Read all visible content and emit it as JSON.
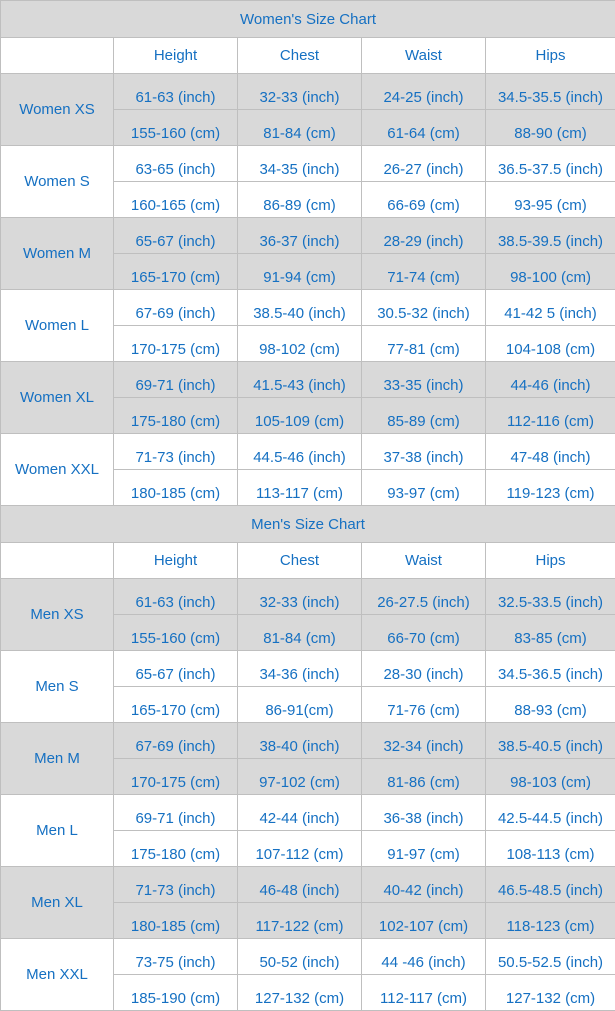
{
  "charts": [
    {
      "title": "Women's Size Chart",
      "headers": [
        "",
        "Height",
        "Chest",
        "Waist",
        "Hips"
      ],
      "sizes": [
        {
          "name": "Women XS",
          "inch": [
            "61-63 (inch)",
            "32-33 (inch)",
            "24-25 (inch)",
            "34.5-35.5 (inch)"
          ],
          "cm": [
            "155-160 (cm)",
            "81-84 (cm)",
            "61-64 (cm)",
            "88-90 (cm)"
          ]
        },
        {
          "name": "Women S",
          "inch": [
            "63-65 (inch)",
            "34-35 (inch)",
            "26-27 (inch)",
            "36.5-37.5 (inch)"
          ],
          "cm": [
            "160-165 (cm)",
            "86-89 (cm)",
            "66-69 (cm)",
            "93-95 (cm)"
          ]
        },
        {
          "name": "Women M",
          "inch": [
            "65-67 (inch)",
            "36-37 (inch)",
            "28-29 (inch)",
            "38.5-39.5 (inch)"
          ],
          "cm": [
            "165-170 (cm)",
            "91-94 (cm)",
            "71-74 (cm)",
            "98-100 (cm)"
          ]
        },
        {
          "name": "Women L",
          "inch": [
            "67-69 (inch)",
            "38.5-40 (inch)",
            "30.5-32 (inch)",
            "41-42 5 (inch)"
          ],
          "cm": [
            "170-175 (cm)",
            "98-102 (cm)",
            "77-81 (cm)",
            "104-108 (cm)"
          ]
        },
        {
          "name": "Women XL",
          "inch": [
            "69-71 (inch)",
            "41.5-43 (inch)",
            "33-35 (inch)",
            "44-46 (inch)"
          ],
          "cm": [
            "175-180 (cm)",
            "105-109 (cm)",
            "85-89 (cm)",
            "112-116 (cm)"
          ]
        },
        {
          "name": "Women XXL",
          "inch": [
            "71-73 (inch)",
            "44.5-46 (inch)",
            "37-38 (inch)",
            "47-48 (inch)"
          ],
          "cm": [
            "180-185 (cm)",
            "113-117 (cm)",
            "93-97 (cm)",
            "119-123 (cm)"
          ]
        }
      ]
    },
    {
      "title": "Men's Size Chart",
      "headers": [
        "",
        "Height",
        "Chest",
        "Waist",
        "Hips"
      ],
      "sizes": [
        {
          "name": "Men XS",
          "inch": [
            "61-63 (inch)",
            "32-33 (inch)",
            "26-27.5 (inch)",
            "32.5-33.5 (inch)"
          ],
          "cm": [
            "155-160 (cm)",
            "81-84 (cm)",
            "66-70 (cm)",
            "83-85 (cm)"
          ]
        },
        {
          "name": "Men S",
          "inch": [
            "65-67 (inch)",
            "34-36 (inch)",
            "28-30 (inch)",
            "34.5-36.5 (inch)"
          ],
          "cm": [
            "165-170 (cm)",
            "86-91(cm)",
            "71-76 (cm)",
            "88-93 (cm)"
          ]
        },
        {
          "name": "Men M",
          "inch": [
            "67-69 (inch)",
            "38-40 (inch)",
            "32-34 (inch)",
            "38.5-40.5 (inch)"
          ],
          "cm": [
            "170-175 (cm)",
            "97-102 (cm)",
            "81-86 (cm)",
            "98-103 (cm)"
          ]
        },
        {
          "name": "Men L",
          "inch": [
            "69-71 (inch)",
            "42-44 (inch)",
            "36-38 (inch)",
            "42.5-44.5 (inch)"
          ],
          "cm": [
            "175-180 (cm)",
            "107-112 (cm)",
            "91-97 (cm)",
            "108-113 (cm)"
          ]
        },
        {
          "name": "Men XL",
          "inch": [
            "71-73 (inch)",
            "46-48 (inch)",
            "40-42 (inch)",
            "46.5-48.5 (inch)"
          ],
          "cm": [
            "180-185 (cm)",
            "117-122 (cm)",
            "102-107 (cm)",
            "118-123 (cm)"
          ]
        },
        {
          "name": "Men XXL",
          "inch": [
            "73-75 (inch)",
            "50-52 (inch)",
            "44 -46 (inch)",
            "50.5-52.5 (inch)"
          ],
          "cm": [
            "185-190 (cm)",
            "127-132 (cm)",
            "112-117 (cm)",
            "127-132 (cm)"
          ]
        }
      ]
    }
  ],
  "colors": {
    "text": "#1570c2",
    "shade": "#d9d9d9",
    "border": "#bfbfbf"
  }
}
